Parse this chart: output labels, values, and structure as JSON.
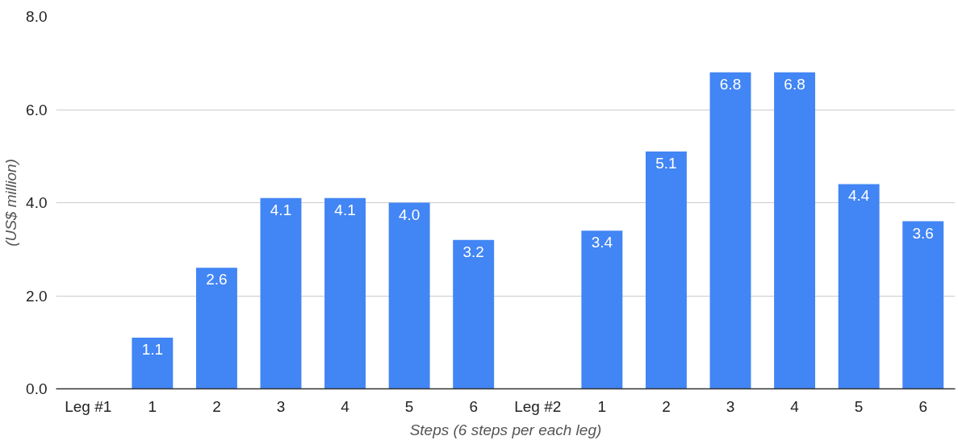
{
  "chart_data": {
    "type": "bar",
    "xlabel": "Steps (6 steps per each leg)",
    "ylabel": "(US$ million)",
    "categories": [
      "Leg #1",
      "1",
      "2",
      "3",
      "4",
      "5",
      "6",
      "Leg #2",
      "1",
      "2",
      "3",
      "4",
      "5",
      "6"
    ],
    "values": [
      null,
      1.1,
      2.6,
      4.1,
      4.1,
      4.0,
      3.2,
      null,
      3.4,
      5.1,
      6.8,
      6.8,
      4.4,
      3.6
    ],
    "value_labels": [
      null,
      "1.1",
      "2.6",
      "4.1",
      "4.1",
      "4.0",
      "3.2",
      null,
      "3.4",
      "5.1",
      "6.8",
      "6.8",
      "4.4",
      "3.6"
    ],
    "color": "#4285f4",
    "ylim": [
      0,
      8
    ],
    "yticks": [
      {
        "value": 0,
        "label": "0.0"
      },
      {
        "value": 2,
        "label": "2.0"
      },
      {
        "value": 4,
        "label": "4.0"
      },
      {
        "value": 6,
        "label": "6.0"
      },
      {
        "value": 8,
        "label": "8.0"
      }
    ],
    "grid": "y"
  }
}
